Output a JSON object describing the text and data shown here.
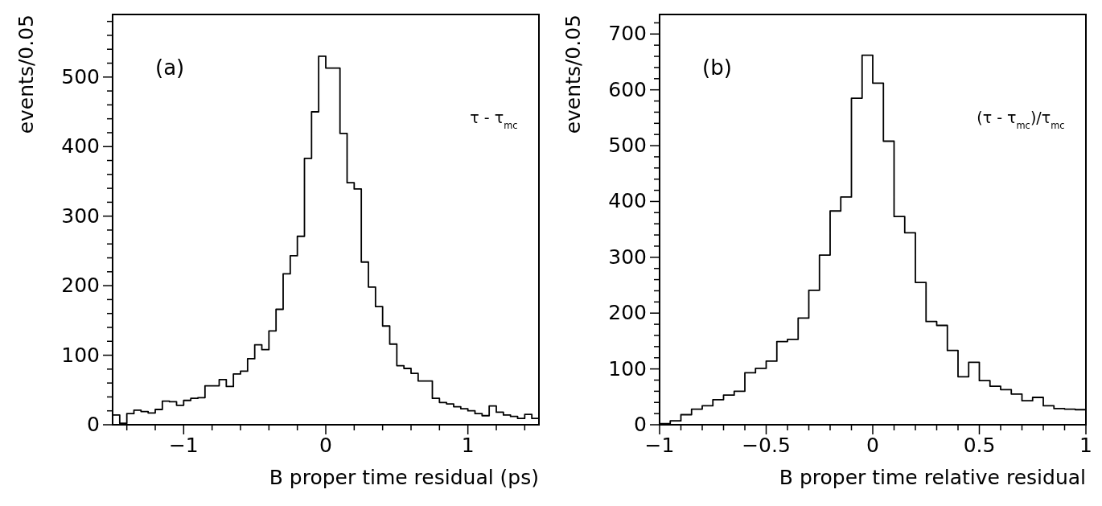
{
  "chart_data": [
    {
      "type": "histogram",
      "xlabel": "B proper time residual (ps)",
      "ylabel": "events/0.05",
      "annotations": [
        "(a)",
        "τ - τ$_{mc}$"
      ],
      "color": "#000000",
      "bins": [
        -1.5,
        -1.45,
        -1.4,
        -1.35,
        -1.3,
        -1.25,
        -1.2,
        -1.15,
        -1.1,
        -1.05,
        -1.0,
        -0.95,
        -0.9,
        -0.85,
        -0.8,
        -0.75,
        -0.7,
        -0.65,
        -0.6,
        -0.55,
        -0.5,
        -0.45,
        -0.4,
        -0.35,
        -0.3,
        -0.25,
        -0.2,
        -0.15,
        -0.1,
        -0.05,
        0,
        0.05,
        0.1,
        0.15,
        0.2,
        0.25,
        0.3,
        0.35,
        0.4,
        0.45,
        0.5,
        0.55,
        0.6,
        0.65,
        0.7,
        0.75,
        0.8,
        0.85,
        0.9,
        0.95,
        1.0,
        1.05,
        1.1,
        1.15,
        1.2,
        1.25,
        1.3,
        1.35,
        1.4,
        1.45,
        1.5
      ],
      "values": [
        14,
        2,
        16,
        21,
        19,
        17,
        22,
        34,
        33,
        28,
        35,
        38,
        39,
        56,
        56,
        65,
        55,
        73,
        77,
        95,
        115,
        108,
        135,
        166,
        217,
        243,
        271,
        383,
        450,
        530,
        513,
        513,
        419,
        348,
        339,
        234,
        198,
        170,
        142,
        116,
        85,
        81,
        74,
        63,
        63,
        38,
        32,
        30,
        26,
        23,
        20,
        16,
        13,
        27,
        18,
        14,
        12,
        9,
        15,
        9
      ],
      "xlim": [
        -1.5,
        1.5
      ],
      "ylim": [
        0,
        590
      ],
      "xticks": [
        {
          "value": -1.4,
          "label": null
        },
        {
          "value": -1.2,
          "label": null
        },
        {
          "value": -1,
          "label": "−1"
        },
        {
          "value": -0.8,
          "label": null
        },
        {
          "value": -0.6,
          "label": null
        },
        {
          "value": -0.4,
          "label": null
        },
        {
          "value": -0.2,
          "label": null
        },
        0,
        {
          "value": 0.2,
          "label": null
        },
        {
          "value": 0.4,
          "label": null
        },
        {
          "value": 0.6,
          "label": null
        },
        {
          "value": 0.8,
          "label": null
        },
        1,
        {
          "value": 1.2,
          "label": null
        },
        {
          "value": 1.4,
          "label": null
        }
      ],
      "yticks": [
        0,
        {
          "value": 20,
          "label": null
        },
        {
          "value": 40,
          "label": null
        },
        {
          "value": 60,
          "label": null
        },
        {
          "value": 80,
          "label": null
        },
        100,
        {
          "value": 120,
          "label": null
        },
        {
          "value": 140,
          "label": null
        },
        {
          "value": 160,
          "label": null
        },
        {
          "value": 180,
          "label": null
        },
        200,
        {
          "value": 220,
          "label": null
        },
        {
          "value": 240,
          "label": null
        },
        {
          "value": 260,
          "label": null
        },
        {
          "value": 280,
          "label": null
        },
        300,
        {
          "value": 320,
          "label": null
        },
        {
          "value": 340,
          "label": null
        },
        {
          "value": 360,
          "label": null
        },
        {
          "value": 380,
          "label": null
        },
        400,
        {
          "value": 420,
          "label": null
        },
        {
          "value": 440,
          "label": null
        },
        {
          "value": 460,
          "label": null
        },
        {
          "value": 480,
          "label": null
        },
        500,
        {
          "value": 520,
          "label": null
        },
        {
          "value": 540,
          "label": null
        },
        {
          "value": 560,
          "label": null
        },
        {
          "value": 580,
          "label": null
        }
      ]
    },
    {
      "type": "histogram",
      "xlabel": "B proper time relative residual",
      "ylabel": "events/0.05",
      "annotations": [
        "(b)",
        "(τ - τ$_{mc}$)/τ$_{mc}$"
      ],
      "color": "#000000",
      "bins": [
        -1.0,
        -0.95,
        -0.9,
        -0.85,
        -0.8,
        -0.75,
        -0.7,
        -0.65,
        -0.6,
        -0.55,
        -0.5,
        -0.45,
        -0.4,
        -0.35,
        -0.3,
        -0.25,
        -0.2,
        -0.15,
        -0.1,
        -0.05,
        0,
        0.05,
        0.1,
        0.15,
        0.2,
        0.25,
        0.3,
        0.35,
        0.4,
        0.45,
        0.5,
        0.55,
        0.6,
        0.65,
        0.7,
        0.75,
        0.8,
        0.85,
        0.9,
        0.95,
        1.0
      ],
      "values": [
        2,
        7,
        18,
        28,
        34,
        45,
        53,
        60,
        93,
        101,
        114,
        149,
        153,
        191,
        241,
        304,
        383,
        408,
        585,
        662,
        612,
        508,
        373,
        344,
        255,
        185,
        178,
        133,
        86,
        112,
        79,
        69,
        63,
        55,
        43,
        49,
        34,
        29,
        28,
        27
      ],
      "xlim": [
        -1,
        1
      ],
      "ylim": [
        0,
        735
      ],
      "xticks": [
        {
          "value": -1,
          "label": "−1"
        },
        {
          "value": -0.9,
          "label": null
        },
        {
          "value": -0.8,
          "label": null
        },
        {
          "value": -0.7,
          "label": null
        },
        {
          "value": -0.6,
          "label": null
        },
        {
          "value": -0.5,
          "label": "−0.5"
        },
        {
          "value": -0.4,
          "label": null
        },
        {
          "value": -0.3,
          "label": null
        },
        {
          "value": -0.2,
          "label": null
        },
        {
          "value": -0.1,
          "label": null
        },
        0,
        {
          "value": 0.1,
          "label": null
        },
        {
          "value": 0.2,
          "label": null
        },
        {
          "value": 0.3,
          "label": null
        },
        {
          "value": 0.4,
          "label": null
        },
        0.5,
        {
          "value": 0.6,
          "label": null
        },
        {
          "value": 0.7,
          "label": null
        },
        {
          "value": 0.8,
          "label": null
        },
        {
          "value": 0.9,
          "label": null
        },
        1
      ],
      "yticks": [
        0,
        {
          "value": 20,
          "label": null
        },
        {
          "value": 40,
          "label": null
        },
        {
          "value": 60,
          "label": null
        },
        {
          "value": 80,
          "label": null
        },
        100,
        {
          "value": 120,
          "label": null
        },
        {
          "value": 140,
          "label": null
        },
        {
          "value": 160,
          "label": null
        },
        {
          "value": 180,
          "label": null
        },
        200,
        {
          "value": 220,
          "label": null
        },
        {
          "value": 240,
          "label": null
        },
        {
          "value": 260,
          "label": null
        },
        {
          "value": 280,
          "label": null
        },
        300,
        {
          "value": 320,
          "label": null
        },
        {
          "value": 340,
          "label": null
        },
        {
          "value": 360,
          "label": null
        },
        {
          "value": 380,
          "label": null
        },
        400,
        {
          "value": 420,
          "label": null
        },
        {
          "value": 440,
          "label": null
        },
        {
          "value": 460,
          "label": null
        },
        {
          "value": 480,
          "label": null
        },
        500,
        {
          "value": 520,
          "label": null
        },
        {
          "value": 540,
          "label": null
        },
        {
          "value": 560,
          "label": null
        },
        {
          "value": 580,
          "label": null
        },
        600,
        {
          "value": 620,
          "label": null
        },
        {
          "value": 640,
          "label": null
        },
        {
          "value": 660,
          "label": null
        },
        {
          "value": 680,
          "label": null
        },
        700,
        {
          "value": 720,
          "label": null
        }
      ]
    }
  ]
}
